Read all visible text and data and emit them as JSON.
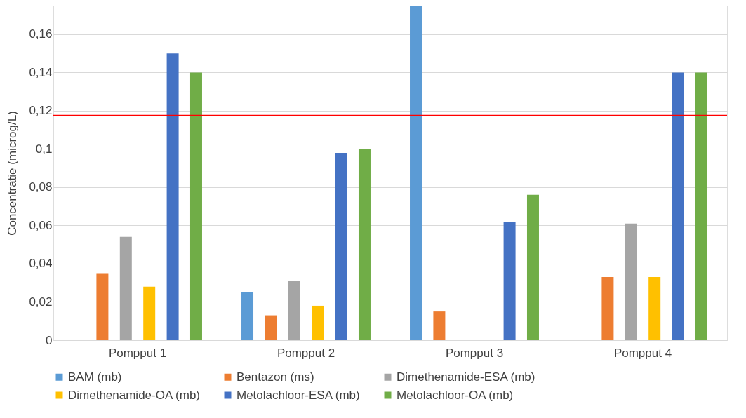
{
  "chart_data": {
    "type": "bar",
    "ylabel": "Concentratie (microg/L)",
    "categories": [
      "Pompput 1",
      "Pompput 2",
      "Pompput 3",
      "Pompput 4"
    ],
    "series": [
      {
        "name": "BAM (mb)",
        "color": "#5b9bd5",
        "values": [
          null,
          0.025,
          0.175,
          null
        ]
      },
      {
        "name": "Bentazon (ms)",
        "color": "#ed7d31",
        "values": [
          0.035,
          0.013,
          0.015,
          0.033
        ]
      },
      {
        "name": "Dimethenamide-ESA (mb)",
        "color": "#a5a5a5",
        "values": [
          0.054,
          0.031,
          null,
          0.061
        ]
      },
      {
        "name": "Dimethenamide-OA (mb)",
        "color": "#ffc000",
        "values": [
          0.028,
          0.018,
          null,
          0.033
        ]
      },
      {
        "name": "Metolachloor-ESA (mb)",
        "color": "#4472c4",
        "values": [
          0.15,
          0.098,
          0.062,
          0.14
        ]
      },
      {
        "name": "Metolachloor-OA (mb)",
        "color": "#70ad47",
        "values": [
          0.14,
          0.1,
          0.076,
          0.14
        ]
      }
    ],
    "ylim": [
      0,
      0.175
    ],
    "yticks": [
      {
        "value": 0,
        "label": "0"
      },
      {
        "value": 0.02,
        "label": "0,02"
      },
      {
        "value": 0.04,
        "label": "0,04"
      },
      {
        "value": 0.06,
        "label": "0,06"
      },
      {
        "value": 0.08,
        "label": "0,08"
      },
      {
        "value": 0.1,
        "label": "0,1"
      },
      {
        "value": 0.12,
        "label": "0,12"
      },
      {
        "value": 0.14,
        "label": "0,14"
      },
      {
        "value": 0.16,
        "label": "0,16"
      }
    ],
    "ref_lines": [
      {
        "axis": "y",
        "value": 0.1176,
        "color": "#ff0000"
      }
    ],
    "grid": "y",
    "legend": "bottom"
  }
}
